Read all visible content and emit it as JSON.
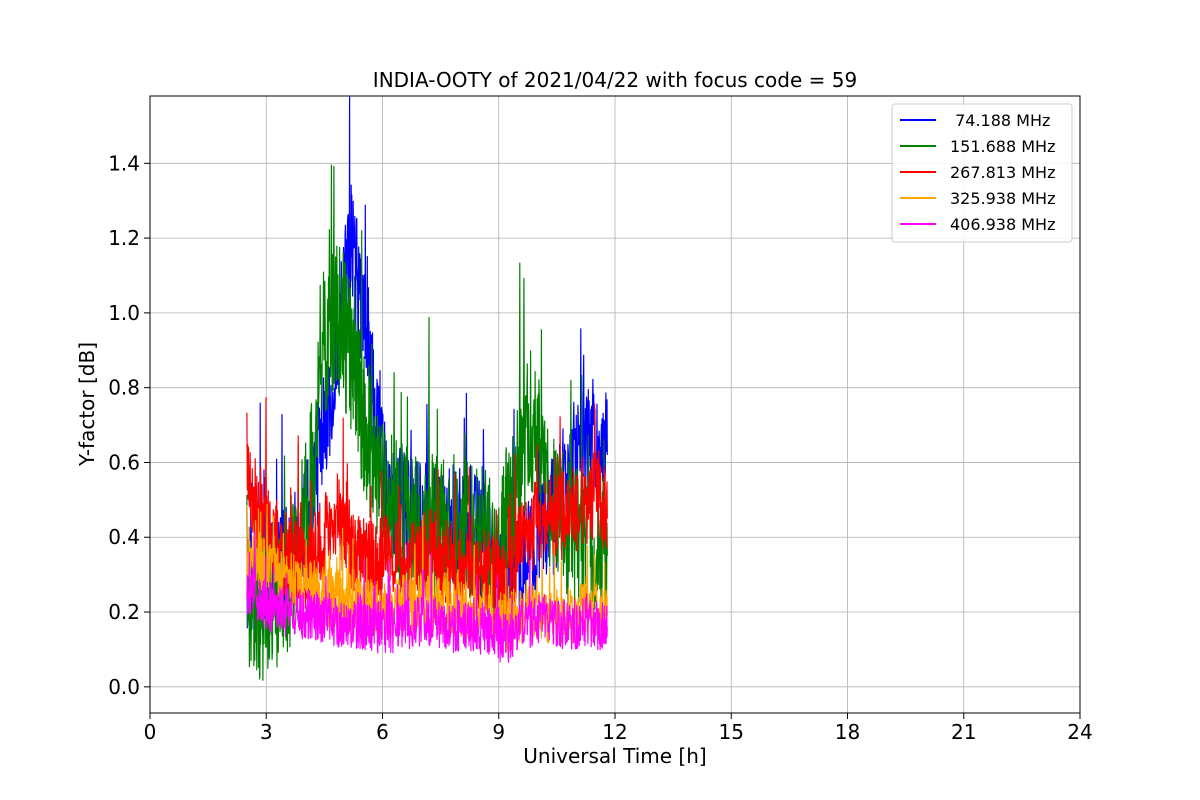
{
  "chart_data": {
    "type": "line",
    "title": "INDIA-OOTY of 2021/04/22 with focus code = 59",
    "xlabel": "Universal Time [h]",
    "ylabel": "Y-factor [dB]",
    "xlim": [
      0,
      24
    ],
    "ylim": [
      -0.07,
      1.58
    ],
    "xticks": [
      0,
      3,
      6,
      9,
      12,
      15,
      18,
      21,
      24
    ],
    "xtick_labels": [
      "0",
      "3",
      "6",
      "9",
      "12",
      "15",
      "18",
      "21",
      "24"
    ],
    "yticks": [
      0.0,
      0.2,
      0.4,
      0.6,
      0.8,
      1.0,
      1.2,
      1.4
    ],
    "ytick_labels": [
      "0.0",
      "0.2",
      "0.4",
      "0.6",
      "0.8",
      "1.0",
      "1.2",
      "1.4"
    ],
    "grid": true,
    "legend_position": "top-right",
    "series": [
      {
        "name": " 74.188 MHz",
        "color": "#0000ff",
        "x": [
          2.5,
          2.8,
          3.0,
          3.3,
          3.6,
          3.9,
          4.2,
          4.5,
          4.8,
          5.0,
          5.2,
          5.4,
          5.6,
          5.8,
          6.0,
          6.3,
          6.6,
          6.9,
          7.2,
          7.5,
          7.8,
          8.1,
          8.4,
          8.7,
          9.0,
          9.2,
          9.5,
          9.8,
          10.1,
          10.4,
          10.7,
          11.0,
          11.3,
          11.6,
          11.8
        ],
        "y": [
          0.3,
          0.28,
          0.3,
          0.33,
          0.35,
          0.38,
          0.5,
          0.7,
          0.85,
          1.05,
          1.2,
          1.05,
          0.9,
          0.72,
          0.58,
          0.5,
          0.48,
          0.46,
          0.44,
          0.44,
          0.44,
          0.42,
          0.42,
          0.38,
          0.32,
          0.25,
          0.3,
          0.35,
          0.4,
          0.45,
          0.55,
          0.62,
          0.68,
          0.66,
          0.62
        ]
      },
      {
        "name": "151.688 MHz",
        "color": "#008000",
        "x": [
          2.5,
          2.8,
          3.0,
          3.3,
          3.6,
          3.9,
          4.2,
          4.5,
          4.8,
          5.0,
          5.2,
          5.4,
          5.6,
          5.8,
          6.0,
          6.3,
          6.6,
          6.9,
          7.2,
          7.5,
          7.8,
          8.1,
          8.4,
          8.7,
          9.0,
          9.2,
          9.5,
          9.8,
          10.1,
          10.4,
          10.7,
          11.0,
          11.3,
          11.6,
          11.8
        ],
        "y": [
          0.22,
          0.2,
          0.22,
          0.25,
          0.3,
          0.4,
          0.6,
          0.9,
          1.0,
          0.95,
          0.88,
          0.78,
          0.68,
          0.6,
          0.52,
          0.48,
          0.45,
          0.42,
          0.42,
          0.42,
          0.44,
          0.42,
          0.4,
          0.38,
          0.3,
          0.45,
          0.55,
          0.7,
          0.6,
          0.48,
          0.42,
          0.4,
          0.38,
          0.36,
          0.35
        ]
      },
      {
        "name": "267.813 MHz",
        "color": "#ff0000",
        "x": [
          2.5,
          2.8,
          3.0,
          3.3,
          3.6,
          3.9,
          4.2,
          4.5,
          4.8,
          5.0,
          5.2,
          5.4,
          5.6,
          5.8,
          6.0,
          6.3,
          6.6,
          6.9,
          7.2,
          7.5,
          7.8,
          8.1,
          8.4,
          8.7,
          9.0,
          9.2,
          9.5,
          9.8,
          10.1,
          10.4,
          10.7,
          11.0,
          11.3,
          11.6,
          11.8
        ],
        "y": [
          0.55,
          0.48,
          0.44,
          0.38,
          0.34,
          0.32,
          0.34,
          0.4,
          0.46,
          0.42,
          0.38,
          0.34,
          0.33,
          0.32,
          0.34,
          0.35,
          0.34,
          0.35,
          0.36,
          0.34,
          0.32,
          0.3,
          0.3,
          0.3,
          0.28,
          0.26,
          0.36,
          0.42,
          0.46,
          0.45,
          0.46,
          0.48,
          0.5,
          0.52,
          0.45
        ]
      },
      {
        "name": "325.938 MHz",
        "color": "#ffa500",
        "x": [
          2.5,
          2.8,
          3.0,
          3.3,
          3.6,
          3.9,
          4.2,
          4.5,
          4.8,
          5.0,
          5.2,
          5.4,
          5.6,
          5.8,
          6.0,
          6.3,
          6.6,
          6.9,
          7.2,
          7.5,
          7.8,
          8.1,
          8.4,
          8.7,
          9.0,
          9.2,
          9.5,
          9.8,
          10.1,
          10.4,
          10.7,
          11.0,
          11.3,
          11.6,
          11.8
        ],
        "y": [
          0.36,
          0.34,
          0.32,
          0.3,
          0.28,
          0.26,
          0.25,
          0.24,
          0.24,
          0.22,
          0.22,
          0.21,
          0.21,
          0.21,
          0.2,
          0.21,
          0.22,
          0.23,
          0.23,
          0.22,
          0.21,
          0.2,
          0.2,
          0.2,
          0.19,
          0.17,
          0.19,
          0.2,
          0.19,
          0.18,
          0.19,
          0.2,
          0.2,
          0.2,
          0.19
        ]
      },
      {
        "name": "406.938 MHz",
        "color": "#ff00ff",
        "x": [
          2.5,
          2.8,
          3.0,
          3.3,
          3.6,
          3.9,
          4.2,
          4.5,
          4.8,
          5.0,
          5.2,
          5.4,
          5.6,
          5.8,
          6.0,
          6.3,
          6.6,
          6.9,
          7.2,
          7.5,
          7.8,
          8.1,
          8.4,
          8.7,
          9.0,
          9.2,
          9.5,
          9.8,
          10.1,
          10.4,
          10.7,
          11.0,
          11.3,
          11.6,
          11.8
        ],
        "y": [
          0.26,
          0.24,
          0.22,
          0.21,
          0.2,
          0.19,
          0.19,
          0.18,
          0.18,
          0.17,
          0.17,
          0.17,
          0.16,
          0.16,
          0.16,
          0.16,
          0.17,
          0.17,
          0.17,
          0.17,
          0.16,
          0.16,
          0.16,
          0.15,
          0.14,
          0.12,
          0.16,
          0.17,
          0.18,
          0.18,
          0.17,
          0.17,
          0.17,
          0.16,
          0.16
        ]
      }
    ]
  }
}
